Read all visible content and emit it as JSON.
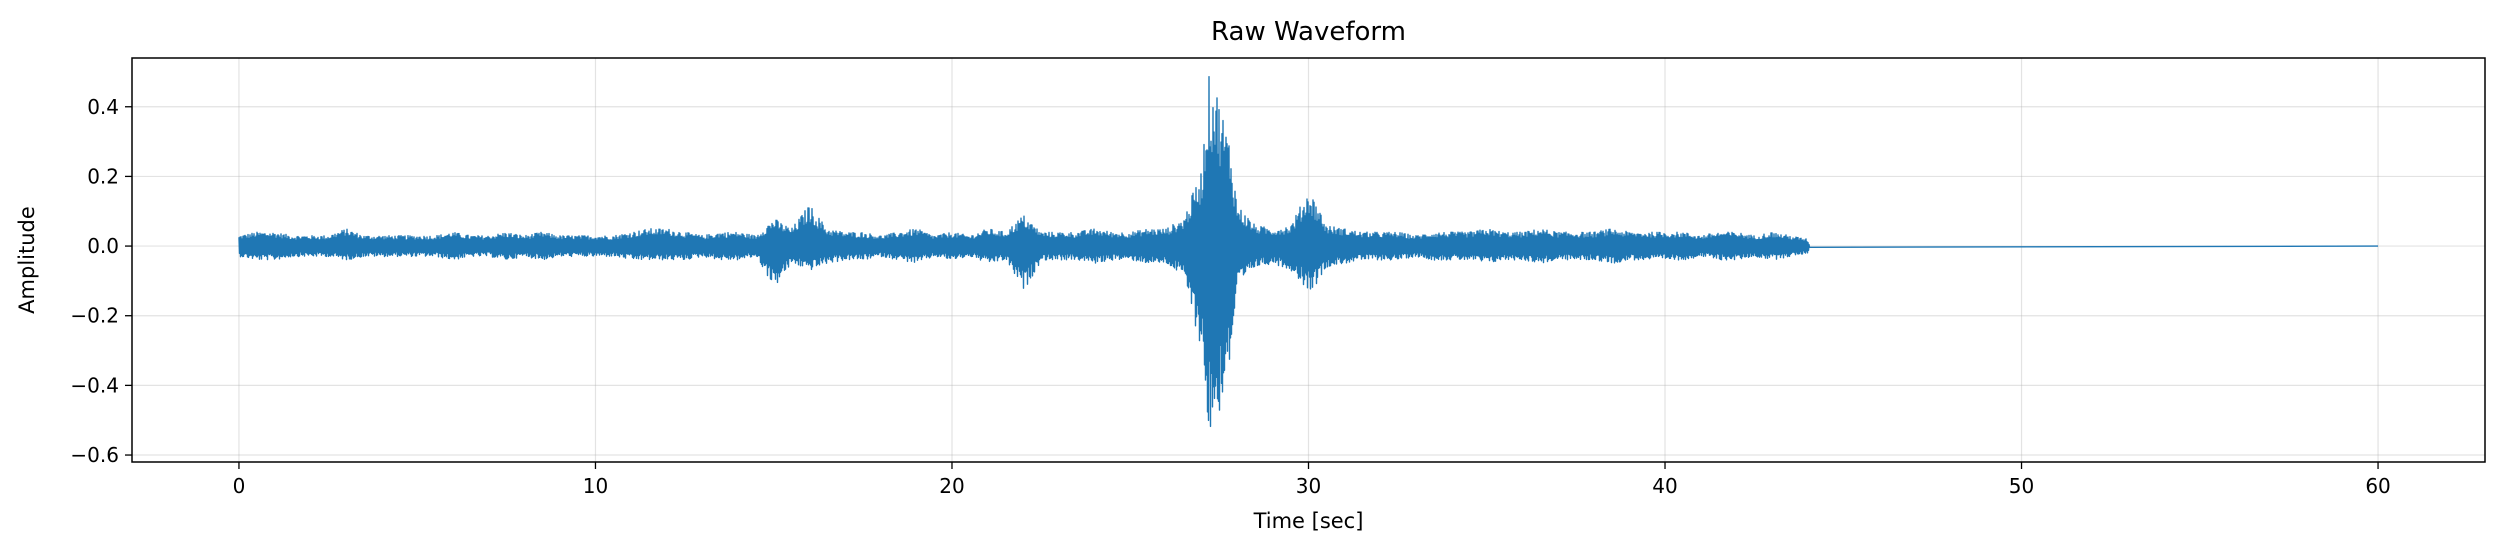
{
  "chart_data": {
    "type": "line",
    "title": "Raw Waveform",
    "xlabel": "Time [sec]",
    "ylabel": "Amplitude",
    "xlim": [
      -3,
      63
    ],
    "ylim": [
      -0.62,
      0.54
    ],
    "xticks": [
      0,
      10,
      20,
      30,
      40,
      50,
      60
    ],
    "yticks": [
      -0.6,
      -0.4,
      -0.2,
      0.0,
      0.2,
      0.4
    ],
    "xtick_labels": [
      "0",
      "10",
      "20",
      "30",
      "40",
      "50",
      "60"
    ],
    "ytick_labels": [
      "−0.6",
      "−0.4",
      "−0.2",
      "0.0",
      "0.2",
      "0.4"
    ],
    "grid": true,
    "line_color": "#1f77b4",
    "series": [
      {
        "t": [
          0,
          0.5,
          1,
          1.5,
          2,
          2.5,
          3,
          3.5,
          4,
          4.5,
          5,
          5.5,
          6,
          6.5,
          7,
          7.5,
          8,
          8.5,
          9,
          9.5,
          10,
          10.5,
          11,
          11.5,
          12,
          12.5,
          13,
          13.5,
          14,
          14.5,
          15,
          15.5,
          16,
          16.5,
          17,
          17.5,
          18,
          18.5,
          19,
          19.5,
          20,
          20.5,
          21,
          21.5,
          22,
          22.5,
          23,
          23.5,
          24,
          24.5,
          25,
          25.5,
          26,
          26.5,
          27,
          27.2,
          27.4,
          27.6,
          27.8,
          28,
          28.5,
          29,
          29.5,
          30,
          30.2,
          30.5,
          31,
          31.5,
          32,
          32.5,
          33,
          33.5,
          34,
          34.5,
          35,
          35.5,
          36,
          36.5,
          37,
          37.5,
          38,
          38.5,
          39,
          39.5,
          40,
          40.5,
          41,
          41.5,
          42,
          42.5,
          43,
          43.5,
          44,
          44.05,
          50,
          60
        ],
        "ymax": [
          0.03,
          0.04,
          0.04,
          0.03,
          0.03,
          0.03,
          0.05,
          0.03,
          0.03,
          0.03,
          0.03,
          0.03,
          0.04,
          0.03,
          0.03,
          0.04,
          0.03,
          0.04,
          0.03,
          0.03,
          0.03,
          0.03,
          0.04,
          0.05,
          0.05,
          0.04,
          0.03,
          0.04,
          0.04,
          0.03,
          0.08,
          0.05,
          0.12,
          0.05,
          0.04,
          0.04,
          0.03,
          0.04,
          0.05,
          0.03,
          0.04,
          0.03,
          0.05,
          0.04,
          0.09,
          0.04,
          0.04,
          0.04,
          0.05,
          0.04,
          0.04,
          0.05,
          0.05,
          0.08,
          0.22,
          0.49,
          0.46,
          0.38,
          0.3,
          0.12,
          0.06,
          0.05,
          0.06,
          0.16,
          0.13,
          0.06,
          0.05,
          0.04,
          0.04,
          0.04,
          0.03,
          0.04,
          0.04,
          0.04,
          0.05,
          0.04,
          0.04,
          0.05,
          0.04,
          0.04,
          0.04,
          0.05,
          0.04,
          0.04,
          0.04,
          0.04,
          0.03,
          0.04,
          0.04,
          0.03,
          0.04,
          0.03,
          0.02,
          0.0,
          0.0,
          0.0
        ],
        "ymin": [
          -0.03,
          -0.04,
          -0.04,
          -0.03,
          -0.03,
          -0.03,
          -0.04,
          -0.03,
          -0.03,
          -0.03,
          -0.03,
          -0.03,
          -0.04,
          -0.03,
          -0.03,
          -0.04,
          -0.03,
          -0.04,
          -0.03,
          -0.03,
          -0.03,
          -0.03,
          -0.04,
          -0.04,
          -0.04,
          -0.04,
          -0.03,
          -0.04,
          -0.04,
          -0.03,
          -0.12,
          -0.05,
          -0.07,
          -0.05,
          -0.04,
          -0.04,
          -0.03,
          -0.04,
          -0.05,
          -0.03,
          -0.04,
          -0.03,
          -0.05,
          -0.04,
          -0.13,
          -0.04,
          -0.04,
          -0.04,
          -0.05,
          -0.04,
          -0.04,
          -0.05,
          -0.05,
          -0.09,
          -0.31,
          -0.56,
          -0.52,
          -0.43,
          -0.33,
          -0.12,
          -0.06,
          -0.05,
          -0.07,
          -0.13,
          -0.11,
          -0.06,
          -0.05,
          -0.04,
          -0.04,
          -0.04,
          -0.03,
          -0.04,
          -0.04,
          -0.04,
          -0.05,
          -0.04,
          -0.04,
          -0.05,
          -0.04,
          -0.04,
          -0.04,
          -0.05,
          -0.04,
          -0.04,
          -0.04,
          -0.04,
          -0.03,
          -0.04,
          -0.04,
          -0.03,
          -0.04,
          -0.03,
          -0.02,
          0.0,
          0.0,
          0.0
        ]
      }
    ]
  }
}
